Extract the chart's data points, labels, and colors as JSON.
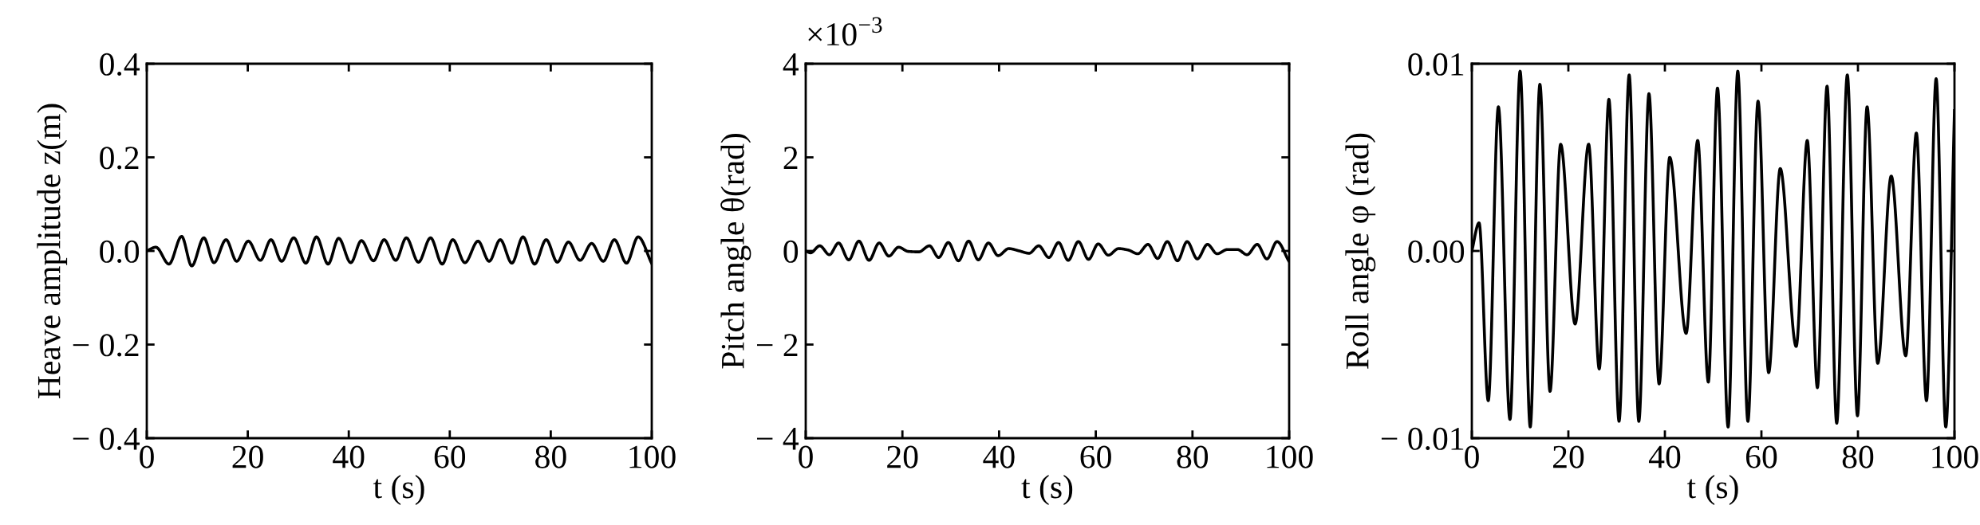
{
  "chart_data": [
    {
      "type": "line",
      "xlabel": "t (s)",
      "ylabel": "Heave amplitude z(m)",
      "xlim": [
        0,
        100
      ],
      "ylim": [
        -0.4,
        0.4
      ],
      "xticks": [
        0,
        20,
        40,
        60,
        80,
        100
      ],
      "yticks": [
        {
          "value": -0.4,
          "label": "− 0.4"
        },
        {
          "value": -0.2,
          "label": "− 0.2"
        },
        {
          "value": 0.0,
          "label": "0.0"
        },
        {
          "value": 0.2,
          "label": "0.2"
        },
        {
          "value": 0.4,
          "label": "0.4"
        }
      ],
      "grid": false,
      "marker": "none",
      "line_style": "solid",
      "x": [
        0,
        1.8,
        4.4,
        6.9,
        8.9,
        11.3,
        13.3,
        15.7,
        17.8,
        20.1,
        22.5,
        24.6,
        26.7,
        29.1,
        31.5,
        33.6,
        35.9,
        38.0,
        40.4,
        42.5,
        44.9,
        47.0,
        49.3,
        51.4,
        53.8,
        56.2,
        58.5,
        60.6,
        63.0,
        65.6,
        67.8,
        70.0,
        72.3,
        74.5,
        76.8,
        79.1,
        81.3,
        83.5,
        85.8,
        88.1,
        90.4,
        92.6,
        95.0,
        97.3,
        100
      ],
      "series": [
        {
          "color": "#000000",
          "values": [
            0,
            0.008,
            -0.028,
            0.031,
            -0.032,
            0.028,
            -0.025,
            0.024,
            -0.022,
            0.021,
            -0.02,
            0.024,
            -0.022,
            0.028,
            -0.026,
            0.03,
            -0.028,
            0.027,
            -0.025,
            0.022,
            -0.021,
            0.024,
            -0.02,
            0.028,
            -0.024,
            0.028,
            -0.028,
            0.024,
            -0.025,
            0.021,
            -0.022,
            0.024,
            -0.026,
            0.03,
            -0.028,
            0.024,
            -0.024,
            0.019,
            -0.02,
            0.016,
            -0.022,
            0.024,
            -0.026,
            0.03,
            -0.027
          ]
        }
      ]
    },
    {
      "type": "line",
      "xlabel": "t (s)",
      "ylabel": "Pitch angle θ(rad)",
      "xlim": [
        0,
        100
      ],
      "ylim": [
        -4,
        4
      ],
      "xticks": [
        0,
        20,
        40,
        60,
        80,
        100
      ],
      "yticks": [
        {
          "value": -4,
          "label": "− 4"
        },
        {
          "value": -2,
          "label": "− 2"
        },
        0,
        2,
        4
      ],
      "grid": false,
      "marker": "none",
      "line_style": "solid",
      "annotations": [
        "×10$^{−3}$"
      ],
      "x": [
        0,
        1.0,
        2.9,
        4.9,
        6.8,
        8.9,
        11.0,
        13.1,
        15.2,
        17.2,
        19.2,
        21.2,
        23.4,
        25.6,
        27.5,
        29.5,
        31.6,
        33.7,
        35.7,
        37.8,
        39.8,
        42.0,
        44.2,
        46.2,
        48.2,
        50.3,
        52.3,
        54.3,
        56.4,
        58.5,
        60.5,
        62.6,
        64.7,
        66.7,
        68.7,
        70.8,
        72.8,
        74.8,
        76.9,
        78.9,
        81.0,
        83.1,
        85.1,
        87.2,
        89.3,
        91.3,
        93.4,
        95.4,
        97.5,
        99.9
      ],
      "series": [
        {
          "color": "#000000",
          "values": [
            0,
            -0.04,
            0.11,
            -0.08,
            0.17,
            -0.19,
            0.21,
            -0.2,
            0.17,
            -0.11,
            0.08,
            -0.01,
            -0.02,
            0.11,
            -0.14,
            0.18,
            -0.21,
            0.21,
            -0.19,
            0.17,
            -0.1,
            0.05,
            0,
            -0.05,
            0.11,
            -0.14,
            0.18,
            -0.2,
            0.2,
            -0.18,
            0.15,
            -0.09,
            0.05,
            0.02,
            -0.06,
            0.14,
            -0.16,
            0.2,
            -0.21,
            0.2,
            -0.17,
            0.14,
            -0.06,
            0.03,
            0.03,
            -0.08,
            0.14,
            -0.17,
            0.2,
            -0.21
          ]
        }
      ]
    },
    {
      "type": "line",
      "xlabel": "t (s)",
      "ylabel": "Roll angle φ (rad)",
      "xlim": [
        0,
        100
      ],
      "ylim": [
        -0.01,
        0.01
      ],
      "xticks": [
        0,
        20,
        40,
        60,
        80,
        100
      ],
      "yticks": [
        {
          "value": -0.01,
          "label": "− 0.01"
        },
        {
          "value": 0.0,
          "label": "0.00"
        },
        {
          "value": 0.01,
          "label": "0.01"
        }
      ],
      "grid": false,
      "marker": "none",
      "line_style": "solid",
      "x": [
        0,
        1.5,
        3.4,
        5.5,
        7.9,
        10.0,
        12.1,
        14.1,
        16.2,
        18.4,
        21.4,
        24.2,
        26.4,
        28.4,
        30.5,
        32.6,
        34.6,
        36.7,
        38.8,
        41.0,
        44.4,
        46.8,
        49.0,
        50.9,
        53.1,
        55.1,
        57.2,
        59.3,
        61.5,
        63.9,
        67.2,
        69.5,
        71.6,
        73.6,
        75.6,
        77.8,
        79.9,
        81.9,
        84.1,
        86.9,
        89.9,
        92.1,
        94.2,
        96.2,
        98.2,
        100
      ],
      "series": [
        {
          "color": "#000000",
          "values": [
            0,
            0.0015,
            -0.008,
            0.0077,
            -0.009,
            0.0096,
            -0.0094,
            0.0089,
            -0.0075,
            0.0057,
            -0.0039,
            0.0057,
            -0.0063,
            0.0081,
            -0.0091,
            0.0094,
            -0.0091,
            0.0084,
            -0.0071,
            0.005,
            -0.0044,
            0.0059,
            -0.007,
            0.0087,
            -0.0094,
            0.0096,
            -0.0091,
            0.008,
            -0.0065,
            0.0044,
            -0.0051,
            0.0059,
            -0.0073,
            0.0088,
            -0.0092,
            0.0094,
            -0.0088,
            0.0077,
            -0.006,
            0.004,
            -0.0056,
            0.0063,
            -0.008,
            0.0092,
            -0.0094,
            0.0075
          ]
        }
      ]
    }
  ]
}
